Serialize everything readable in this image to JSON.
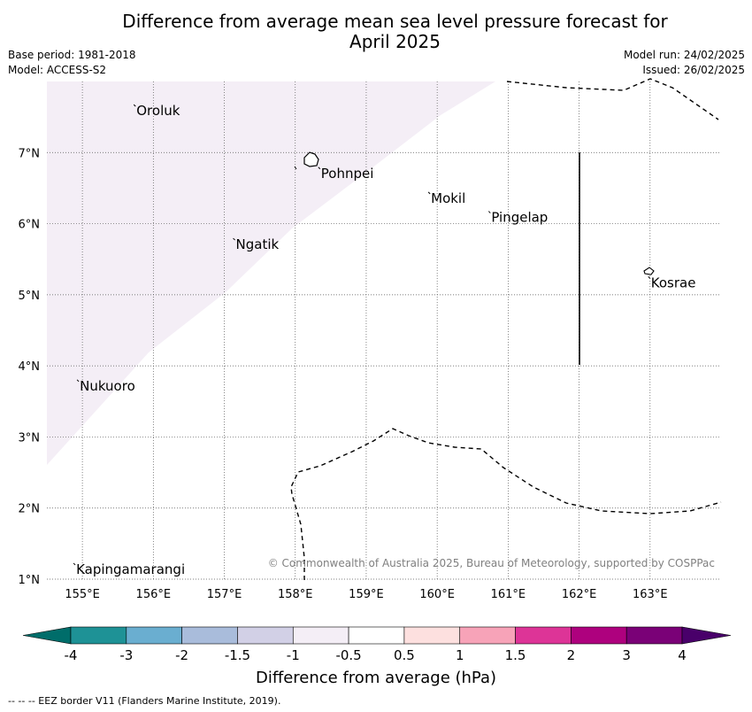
{
  "title_line1": "Difference from average mean sea level pressure forecast for",
  "title_line2": "April 2025",
  "meta_left": [
    "Base period: 1981-2018",
    "Model: ACCESS-S2"
  ],
  "meta_right": [
    "Model run: 24/02/2025",
    "Issued: 26/02/2025"
  ],
  "map": {
    "lon_ticks": [
      "155°E",
      "156°E",
      "157°E",
      "158°E",
      "159°E",
      "160°E",
      "161°E",
      "162°E",
      "163°E"
    ],
    "lat_ticks": [
      "7°N",
      "6°N",
      "5°N",
      "4°N",
      "3°N",
      "2°N",
      "1°N"
    ],
    "lon_range": [
      154.5,
      164
    ],
    "lat_range": [
      1,
      8
    ],
    "copyright": "© Commonwealth of Australia 2025, Bureau of Meteorology, supported by COSPPac",
    "places": [
      {
        "name": "Oroluk",
        "lon": 155.75,
        "lat": 7.6
      },
      {
        "name": "Pohnpei",
        "lon": 158.35,
        "lat": 6.72
      },
      {
        "name": "Mokil",
        "lon": 159.9,
        "lat": 6.37
      },
      {
        "name": "Pingelap",
        "lon": 160.75,
        "lat": 6.1
      },
      {
        "name": "Ngatik",
        "lon": 157.15,
        "lat": 5.72
      },
      {
        "name": "Kosrae",
        "lon": 163.0,
        "lat": 5.18
      },
      {
        "name": "Nukuoro",
        "lon": 154.95,
        "lat": 3.73
      },
      {
        "name": "Kapingamarangi",
        "lon": 154.9,
        "lat": 1.15
      }
    ]
  },
  "colorbar": {
    "ticks": [
      "-4",
      "-3",
      "-2",
      "-1.5",
      "-1",
      "-0.5",
      "0.5",
      "1",
      "1.5",
      "2",
      "3",
      "4"
    ],
    "colors": [
      "#006d6a",
      "#1e9296",
      "#6aaed0",
      "#a9bcdb",
      "#d2d0e6",
      "#f4eef6",
      "#ffffff",
      "#fde0df",
      "#f7a3b8",
      "#dd3497",
      "#ae017e",
      "#7a0177",
      "#49006a"
    ],
    "label": "Difference from average (hPa)"
  },
  "footer": "--  --  -- EEZ border V11 (Flanders Marine Institute, 2019)."
}
